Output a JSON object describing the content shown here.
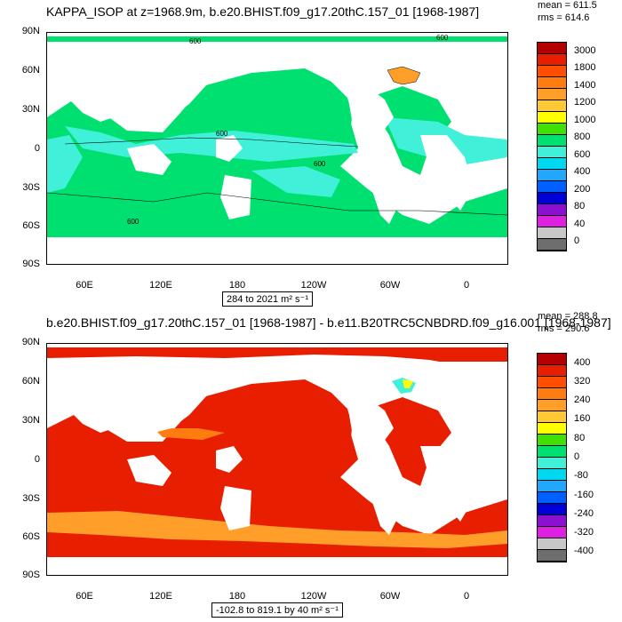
{
  "charts": [
    {
      "title": "KAPPA_ISOP at z=1968.9m, b.e20.BHIST.f09_g17.20thC.157_01 [1968-1987]",
      "mean": "mean = 611.5",
      "rms": "rms = 614.6",
      "range_text": "284 to 2021 m² s⁻¹",
      "contour_label": "600"
    },
    {
      "title": "b.e20.BHIST.f09_g17.20thC.157_01 [1968-1987] - b.e11.B20TRC5CNBDRD.f09_g16.001 [1968-1987]",
      "mean": "mean = 288.8",
      "rms": "rms = 290.6",
      "range_text": "-102.8 to 819.1 by 40 m² s⁻¹"
    }
  ],
  "chart_data": [
    {
      "type": "heatmap",
      "title": "KAPPA_ISOP at z=1968.9m, b.e20.BHIST.f09_g17.20thC.157_01 [1968-1987]",
      "y_ticks": [
        "90N",
        "60N",
        "30N",
        "0",
        "30S",
        "60S",
        "90S"
      ],
      "x_ticks": [
        "60E",
        "120E",
        "180",
        "120W",
        "60W",
        "0"
      ],
      "colorbar_labels": [
        "3000",
        "1800",
        "1400",
        "1200",
        "1000",
        "800",
        "600",
        "400",
        "200",
        "80",
        "40",
        "0"
      ],
      "colorbar_colors": [
        "#b40000",
        "#e81e00",
        "#ff4e00",
        "#ff7d10",
        "#ff9e28",
        "#ffc834",
        "#ffff00",
        "#40e000",
        "#00e070",
        "#40f0d8",
        "#00d8f0",
        "#20a8ff",
        "#0060ff",
        "#0000d8",
        "#8c10d0",
        "#e020e0",
        "#c8c8c8",
        "#6e6e6e"
      ],
      "mean": 611.5,
      "rms": 614.6,
      "min": 284,
      "max": 2021,
      "units": "m² s⁻¹"
    },
    {
      "type": "heatmap",
      "title": "b.e20.BHIST.f09_g17.20thC.157_01 [1968-1987] - b.e11.B20TRC5CNBDRD.f09_g16.001 [1968-1987]",
      "y_ticks": [
        "90N",
        "60N",
        "30N",
        "0",
        "30S",
        "60S",
        "90S"
      ],
      "x_ticks": [
        "60E",
        "120E",
        "180",
        "120W",
        "60W",
        "0"
      ],
      "colorbar_labels": [
        "400",
        "320",
        "240",
        "160",
        "80",
        "0",
        "-80",
        "-160",
        "-240",
        "-320",
        "-400"
      ],
      "colorbar_colors": [
        "#b40000",
        "#e81e00",
        "#ff4e00",
        "#ff7d10",
        "#ff9e28",
        "#ffc834",
        "#ffff00",
        "#40e000",
        "#00e070",
        "#40f0d8",
        "#00d8f0",
        "#20a8ff",
        "#0060ff",
        "#0000d8",
        "#8c10d0",
        "#e020e0",
        "#c8c8c8",
        "#6e6e6e"
      ],
      "mean": 288.8,
      "rms": 290.6,
      "min": -102.8,
      "max": 819.1,
      "interval": 40,
      "units": "m² s⁻¹"
    }
  ]
}
